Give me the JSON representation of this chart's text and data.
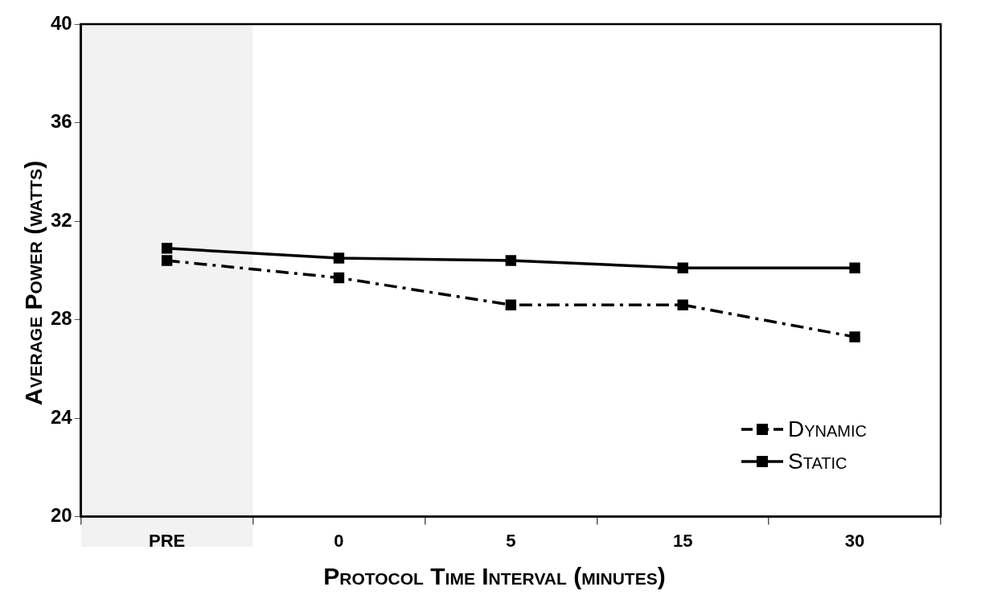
{
  "chart_data": {
    "type": "line",
    "xlabel": "Protocol Time Interval (minutes)",
    "ylabel": "Average Power (watts)",
    "categories": [
      "PRE",
      "0",
      "5",
      "15",
      "30"
    ],
    "series": [
      {
        "name": "Dynamic",
        "color": "#000000",
        "line_style": "dashed",
        "values": [
          30.4,
          29.7,
          28.6,
          28.6,
          27.3
        ]
      },
      {
        "name": "Static",
        "color": "#000000",
        "line_style": "solid",
        "values": [
          30.9,
          30.5,
          30.4,
          30.1,
          30.1
        ]
      }
    ],
    "ylim": [
      20,
      40
    ],
    "yticks": [
      20,
      24,
      28,
      32,
      36,
      40
    ],
    "grid": false,
    "legend": "bottom right",
    "marker": "square",
    "bands": [
      {
        "axis": "x",
        "from": "PRE",
        "to": "PRE",
        "color": "#f2f2f2"
      }
    ]
  }
}
